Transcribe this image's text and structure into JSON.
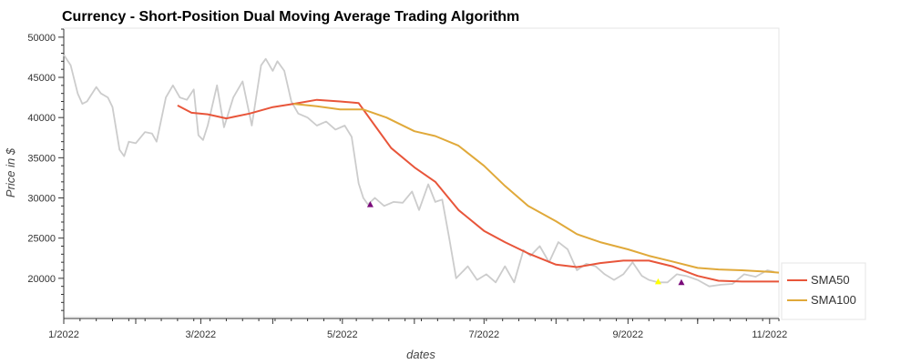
{
  "chart_data": {
    "type": "line",
    "title": "Currency - Short-Position Dual Moving Average Trading Algorithm",
    "xlabel": "dates",
    "ylabel": "Price in $",
    "xlim": [
      "2022-01-01",
      "2022-11-05"
    ],
    "ylim": [
      15000,
      51000
    ],
    "x_ticks": [
      "1/2022",
      "3/2022",
      "5/2022",
      "7/2022",
      "9/2022",
      "11/2022"
    ],
    "y_ticks": [
      20000,
      25000,
      30000,
      35000,
      40000,
      45000,
      50000
    ],
    "grid": false,
    "legend": {
      "placement": "right",
      "entries": [
        "SMA50",
        "SMA100"
      ]
    },
    "colors": {
      "price": "#cccccc",
      "SMA50": "#e8553a",
      "SMA100": "#e0a93a",
      "buy_marker": "#7a0a7a",
      "sell_marker": "#ffff00"
    },
    "price": {
      "x": [
        "2022-01-01",
        "2022-01-04",
        "2022-01-07",
        "2022-01-09",
        "2022-01-11",
        "2022-01-15",
        "2022-01-17",
        "2022-01-20",
        "2022-01-22",
        "2022-01-25",
        "2022-01-27",
        "2022-01-29",
        "2022-02-01",
        "2022-02-05",
        "2022-02-08",
        "2022-02-10",
        "2022-02-14",
        "2022-02-17",
        "2022-02-20",
        "2022-02-23",
        "2022-02-26",
        "2022-02-28",
        "2022-03-02",
        "2022-03-04",
        "2022-03-08",
        "2022-03-11",
        "2022-03-15",
        "2022-03-19",
        "2022-03-23",
        "2022-03-27",
        "2022-03-29",
        "2022-04-01",
        "2022-04-03",
        "2022-04-06",
        "2022-04-09",
        "2022-04-12",
        "2022-04-16",
        "2022-04-20",
        "2022-04-24",
        "2022-04-28",
        "2022-05-02",
        "2022-05-05",
        "2022-05-08",
        "2022-05-10",
        "2022-05-12",
        "2022-05-15",
        "2022-05-19",
        "2022-05-23",
        "2022-05-27",
        "2022-05-31",
        "2022-06-03",
        "2022-06-07",
        "2022-06-10",
        "2022-06-13",
        "2022-06-16",
        "2022-06-19",
        "2022-06-24",
        "2022-06-28",
        "2022-07-02",
        "2022-07-06",
        "2022-07-10",
        "2022-07-14",
        "2022-07-18",
        "2022-07-21",
        "2022-07-25",
        "2022-07-29",
        "2022-08-02",
        "2022-08-06",
        "2022-08-10",
        "2022-08-14",
        "2022-08-18",
        "2022-08-22",
        "2022-08-26",
        "2022-08-30",
        "2022-09-03",
        "2022-09-07",
        "2022-09-10",
        "2022-09-14",
        "2022-09-18",
        "2022-09-22",
        "2022-09-26",
        "2022-10-01",
        "2022-10-06",
        "2022-10-11",
        "2022-10-16",
        "2022-10-21",
        "2022-10-26",
        "2022-10-31",
        "2022-11-03"
      ],
      "values": [
        47800,
        46500,
        43000,
        41700,
        42000,
        43800,
        43000,
        42500,
        41300,
        36000,
        35200,
        37000,
        36800,
        38200,
        38000,
        37000,
        42500,
        44000,
        42500,
        42200,
        43500,
        37800,
        37200,
        39000,
        44000,
        38800,
        42500,
        44500,
        39000,
        46500,
        47300,
        45800,
        47000,
        45800,
        42000,
        40500,
        40000,
        39000,
        39500,
        38500,
        39000,
        37600,
        31800,
        30000,
        29200,
        30000,
        29000,
        29500,
        29400,
        30800,
        28500,
        31700,
        29500,
        29800,
        25000,
        20000,
        21500,
        19800,
        20500,
        19500,
        21500,
        19500,
        23500,
        22800,
        24000,
        22000,
        24500,
        23600,
        21000,
        21800,
        21500,
        20500,
        19800,
        20500,
        22000,
        20300,
        19800,
        19500,
        19500,
        20500,
        20300,
        19800,
        19000,
        19200,
        19300,
        20500,
        20200,
        21000,
        20800
      ]
    },
    "series": [
      {
        "name": "SMA50",
        "x": [
          "2022-02-19",
          "2022-02-25",
          "2022-03-04",
          "2022-03-12",
          "2022-03-22",
          "2022-04-01",
          "2022-04-10",
          "2022-04-20",
          "2022-04-30",
          "2022-05-08",
          "2022-05-15",
          "2022-05-22",
          "2022-06-01",
          "2022-06-10",
          "2022-06-20",
          "2022-07-01",
          "2022-07-10",
          "2022-07-20",
          "2022-08-01",
          "2022-08-10",
          "2022-08-20",
          "2022-08-30",
          "2022-09-10",
          "2022-09-20",
          "2022-10-01",
          "2022-10-10",
          "2022-10-20",
          "2022-11-01",
          "2022-11-05"
        ],
        "values": [
          41500,
          40600,
          40400,
          39900,
          40500,
          41300,
          41700,
          42200,
          42000,
          41800,
          39000,
          36200,
          33800,
          32000,
          28500,
          25900,
          24500,
          23100,
          21700,
          21400,
          21900,
          22200,
          22200,
          21500,
          20300,
          19700,
          19600,
          19600,
          19600
        ]
      },
      {
        "name": "SMA100",
        "x": [
          "2022-04-10",
          "2022-04-20",
          "2022-04-30",
          "2022-05-10",
          "2022-05-20",
          "2022-06-01",
          "2022-06-10",
          "2022-06-20",
          "2022-07-01",
          "2022-07-10",
          "2022-07-20",
          "2022-08-01",
          "2022-08-10",
          "2022-08-20",
          "2022-09-01",
          "2022-09-10",
          "2022-09-20",
          "2022-10-01",
          "2022-10-10",
          "2022-10-20",
          "2022-11-01",
          "2022-11-05"
        ],
        "values": [
          41700,
          41400,
          41000,
          41000,
          40000,
          38300,
          37700,
          36500,
          34000,
          31500,
          29000,
          27100,
          25500,
          24500,
          23600,
          22800,
          22100,
          21300,
          21100,
          21000,
          20800,
          20700
        ]
      }
    ],
    "markers": [
      {
        "kind": "buy",
        "x": "2022-05-13",
        "y": 29200
      },
      {
        "kind": "sell",
        "x": "2022-09-14",
        "y": 19600
      },
      {
        "kind": "buy",
        "x": "2022-09-24",
        "y": 19500
      }
    ]
  }
}
